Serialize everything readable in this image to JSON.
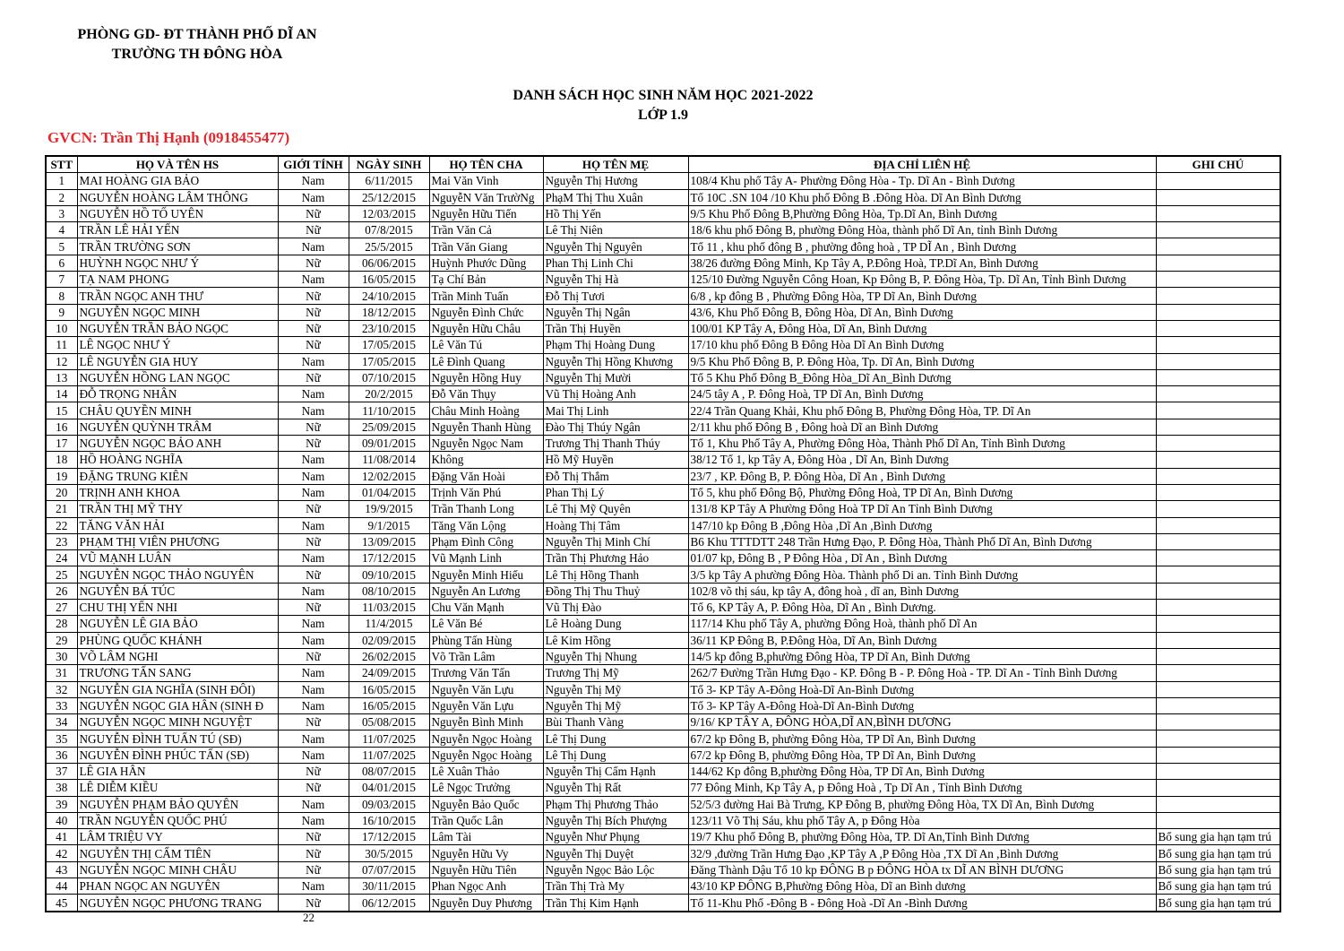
{
  "header": {
    "school_line1": "PHÒNG GD- ĐT THÀNH PHỐ DĨ AN",
    "school_line2": "TRƯỜNG TH ĐÔNG HÒA",
    "title": "DANH SÁCH HỌC SINH NĂM HỌC 2021-2022",
    "class": "LỚP 1.9",
    "teacher": "GVCN: Trần Thị Hạnh (0918455477)",
    "teacher_color": "#e8262a"
  },
  "table": {
    "columns": [
      "STT",
      "HỌ VÀ TÊN HS",
      "GIỚI TÍNH",
      "NGÀY SINH",
      "HỌ TÊN CHA",
      "HỌ TÊN MẸ",
      "ĐỊA CHỈ LIÊN HỆ",
      "GHI CHÚ"
    ],
    "rows": [
      [
        "1",
        "MAI HOÀNG GIA BẢO",
        "Nam",
        "6/11/2015",
        "Mai Văn Vinh",
        "Nguyễn Thị Hương",
        "108/4 Khu phố Tây A- Phường Đông Hòa - Tp. Dĩ An - Bình Dương",
        ""
      ],
      [
        "2",
        "NGUYỄN HOÀNG LÂM THÔNG",
        "Nam",
        "25/12/2015",
        "NguyễN Văn TrườNg",
        "PhạM Thị Thu Xuân",
        "Tổ 10C .SN 104 /10 Khu phố Đông B .Đông Hòa. Dĩ An Bình Dương",
        ""
      ],
      [
        "3",
        "NGUYỄN HỒ TỐ UYÊN",
        "Nữ",
        "12/03/2015",
        "Nguyễn Hữu Tiến",
        "Hồ Thị Yến",
        "9/5 Khu Phố Đông B,Phường Đông Hòa, Tp.Dĩ An, Bình Dương",
        ""
      ],
      [
        "4",
        "TRẦN LÊ HẢI YẾN",
        "Nữ",
        "07/8/2015",
        "Trần Văn Cả",
        "Lê Thị Niên",
        "18/6 khu phố Đông B, phường Đông Hòa, thành phố Dĩ An, tỉnh Bình Dương",
        ""
      ],
      [
        "5",
        "TRẦN TRƯỜNG SƠN",
        "Nam",
        "25/5/2015",
        "Trần Văn Giang",
        "Nguyễn Thị Nguyên",
        "Tổ 11 , khu phố đông B , phường đông hoà ,  TP DĨ An , Bình Dương",
        ""
      ],
      [
        "6",
        "HUỲNH NGỌC NHƯ Ý",
        "Nữ",
        "06/06/2015",
        "Huỳnh Phước Dũng",
        "Phan Thị Linh Chi",
        "38/26 đường Đông Minh, Kp Tây A, P.Đông Hoà, TP.Dĩ An, Bình Dương",
        ""
      ],
      [
        "7",
        "TẠ NAM PHONG",
        "Nam",
        "16/05/2015",
        "Tạ Chí Bản",
        "Nguyễn Thị Hà",
        "125/10 Đường Nguyễn Công Hoan, Kp Đông B, P. Đông Hòa, Tp. Dĩ An, Tỉnh Bình Dương",
        ""
      ],
      [
        "8",
        "TRẦN NGỌC ANH THƯ",
        "Nữ",
        "24/10/2015",
        "Trần Minh Tuấn",
        "Đỗ Thị Tươi",
        "6/8 , kp đông B , Phường Đông Hòa, TP Dĩ An, Bình Dương",
        ""
      ],
      [
        "9",
        "NGUYỄN NGỌC MINH",
        "Nữ",
        "18/12/2015",
        "Nguyễn Đình Chức",
        "Nguyễn Thị Ngân",
        "43/6, Khu Phố Đông B, Đông Hòa, Dĩ An, Bình Dương",
        ""
      ],
      [
        "10",
        "NGUYỄN TRẦN BẢO NGỌC",
        "Nữ",
        "23/10/2015",
        "Nguyễn Hữu Châu",
        "Trần Thị Huyền",
        "100/01 KP Tây A, Đông Hòa, Dĩ An, Bình Dương",
        ""
      ],
      [
        "11",
        "LÊ NGỌC NHƯ Ý",
        "Nữ",
        "17/05/2015",
        "Lê Văn Tú",
        "Phạm Thị Hoàng Dung",
        "17/10 khu phố Đông B Đông Hòa Dĩ An Bình Dương",
        ""
      ],
      [
        "12",
        "LÊ NGUYỄN GIA HUY",
        "Nam",
        "17/05/2015",
        "Lê Đình Quang",
        "Nguyễn Thị Hồng Khương",
        "9/5 Khu Phố Đông B, P. Đông Hòa, Tp. Dĩ An, Bình Dương",
        ""
      ],
      [
        "13",
        "NGUYỄN HỒNG LAN NGỌC",
        "Nữ",
        "07/10/2015",
        "Nguyễn Hồng Huy",
        "Nguyễn Thị Mười",
        "Tổ 5 Khu Phố Đông B_Đông Hòa_Dĩ An_Bình Dương",
        ""
      ],
      [
        "14",
        "ĐỖ TRỌNG NHÂN",
        "Nam",
        "20/2/2015",
        " Đỗ Văn Thụy",
        "Vũ Thị Hoàng Anh",
        "24/5 tây A , P. Đông Hoà, TP Dĩ An, Bình Dương",
        ""
      ],
      [
        "15",
        "CHÂU QUYỀN MINH",
        "Nam",
        "11/10/2015",
        "Châu Minh Hoàng",
        "Mai Thị Linh",
        "22/4 Trần Quang Khải, Khu phố Đông B, Phường Đông Hòa, TP. Dĩ An",
        ""
      ],
      [
        "16",
        "NGUYỄN QUỲNH TRÂM",
        "Nữ",
        "25/09/2015",
        "Nguyễn Thanh Hùng",
        "Đào Thị Thúy Ngân",
        "2/11 khu phố Đông B , Đông hoà Dĩ an Bình Dương",
        ""
      ],
      [
        "17",
        "NGUYỄN NGỌC BẢO ANH",
        "Nữ",
        "09/01/2015",
        "Nguyễn Ngọc Nam",
        "Trương Thị Thanh Thúy",
        "Tổ 1, Khu Phố Tây A, Phường Đông Hòa, Thành Phố Dĩ An, Tỉnh Bình Dương",
        ""
      ],
      [
        "18",
        "HỒ HOÀNG NGHĨA",
        "Nam",
        "11/08/2014",
        "Không",
        "Hồ Mỹ Huyền",
        "38/12 Tổ 1, kp Tây A, Đông Hòa , Dĩ An, Bình Dương",
        ""
      ],
      [
        "19",
        "ĐẶNG TRUNG KIÊN",
        "Nam",
        "12/02/2015",
        "Đặng Văn Hoài",
        "Đỗ Thị Thắm",
        "23/7 , KP. Đông B, P. Đông Hòa, Dĩ An , Bình Dương",
        ""
      ],
      [
        "20",
        "TRỊNH ANH KHOA",
        "Nam",
        "01/04/2015",
        "Trịnh Văn Phú",
        "Phan Thị Lý",
        "Tổ 5, khu phố Đông Bộ, Phường Đông Hoà, TP Dĩ An, Bình Dương",
        ""
      ],
      [
        "21",
        "TRẦN THỊ MỸ THY",
        "Nữ",
        "19/9/2015",
        "Trần Thanh Long",
        "Lê Thị Mỹ Quyên",
        "131/8 KP Tây A Phường Đông Hoà TP Dĩ An Tỉnh Bình Dương",
        ""
      ],
      [
        "22",
        "TĂNG VĂN HẢI",
        "Nam",
        "9/1/2015",
        "Tăng Văn Lộng",
        "Hoàng Thị Tâm",
        "147/10 kp Đông B ,Đông Hòa ,Dĩ An ,Bình Dương",
        ""
      ],
      [
        "23",
        "PHẠM THỊ VIÊN PHƯƠNG",
        "Nữ",
        "13/09/2015",
        "Phạm Đình Công",
        "Nguyễn Thị Minh Chí",
        "B6 Khu TTTDTT 248 Trần Hưng Đạo, P. Đông Hòa, Thành Phố Dĩ An, Bình Dương",
        ""
      ],
      [
        "24",
        "VŨ MẠNH LUÂN",
        "Nam",
        "17/12/2015",
        "Vũ Mạnh Linh",
        "Trần Thị Phương Hảo",
        "01/07 kp, Đông B , P Đông Hòa , Dĩ An , Bình Dương",
        ""
      ],
      [
        "25",
        "NGUYỄN NGỌC THẢO NGUYÊN",
        "Nữ",
        "09/10/2015",
        "Nguyễn Minh Hiếu",
        "Lê Thị Hồng Thanh",
        "3/5 kp Tây A phường Đông Hòa. Thành phố Di an. Tỉnh Bình Dương",
        ""
      ],
      [
        "26",
        "NGUYỄN  BÁ TÚC",
        "Nam",
        "08/10/2015",
        "Nguyễn  An Lương",
        "Đồng  Thị  Thu  Thuỷ",
        "102/8 võ  thị  sáu,  kp  tây  A,  đông  hoà  , dĩ  an,  Bình Dương",
        ""
      ],
      [
        "27",
        "CHU THỊ YẾN NHI",
        "Nữ",
        "11/03/2015",
        "Chu Văn Mạnh",
        "Vũ Thị Đào",
        "Tổ 6, KP Tây A, P. Đông Hòa, Dĩ An , Bình Dương.",
        ""
      ],
      [
        "28",
        "NGUYỄN LÊ GIA BẢO",
        "Nam",
        "11/4/2015",
        "Lê Văn Bé",
        "Lê Hoàng Dung",
        "117/14 Khu phố Tây A, phường Đông Hoà, thành phố Dĩ An",
        ""
      ],
      [
        "29",
        "PHÙNG QUỐC KHÁNH",
        "Nam",
        "02/09/2015",
        "Phùng Tấn Hùng",
        "Lê Kim Hồng",
        "36/11 KP Đông B, P.Đông Hòa, Dĩ An, Bình Dương",
        ""
      ],
      [
        "30",
        "VÕ LÂM NGHI",
        "Nữ",
        "26/02/2015",
        "Võ Trần Lâm",
        "Nguyễn Thị Nhung",
        "14/5 kp đông B,phường Đông Hòa, TP Dĩ An, Bình Dương",
        ""
      ],
      [
        "31",
        "TRƯƠNG TẤN SANG",
        "Nam",
        "24/09/2015",
        "Trương Văn Tấn",
        "Trương Thị Mỹ",
        "262/7 Đường Trần Hưng Đạo - KP. Đông B - P. Đông Hoà - TP. Dĩ An - Tỉnh Bình Dương",
        ""
      ],
      [
        "32",
        "NGUYỄN GIA NGHĨA (SINH ĐÔI)",
        "Nam",
        "16/05/2015",
        "Nguyễn Văn Lựu",
        "Nguyễn Thị Mỹ",
        "Tổ 3- KP Tây A-Đông Hoà-Dĩ An-Bình Dương",
        ""
      ],
      [
        "33",
        " NGUYỄN NGỌC GIA HÂN (SINH Đ",
        "Nam",
        "16/05/2015",
        "Nguyễn Văn Lựu",
        "Nguyễn Thị Mỹ",
        "Tổ 3- KP Tây A-Đông Hoà-Dĩ An-Bình Dương",
        ""
      ],
      [
        "34",
        "NGUYỄN NGỌC MINH NGUYỆT",
        "Nữ",
        "05/08/2015",
        "Nguyễn  Bình Minh",
        "Bùi Thanh Vàng",
        "9/16/ KP TÂY A, ĐÔNG HÒA,DĨ AN,BÌNH DƯƠNG",
        ""
      ],
      [
        "35",
        "NGUYỄN ĐÌNH TUẤN TÚ (SĐ)",
        "Nam",
        "11/07/2025",
        "Nguyễn Ngọc Hoàng",
        "Lê Thị Dung",
        "67/2 kp Đông B, phường Đông Hòa, TP Dĩ An, Bình Dương",
        ""
      ],
      [
        "36",
        " NGUYỄN ĐÌNH PHÚC TẤN (SĐ)",
        "Nam",
        "11/07/2025",
        "Nguyễn Ngọc Hoàng",
        "Lê Thị Dung",
        "67/2 kp Đông B, phường Đông Hòa, TP Dĩ An, Bình Dương",
        ""
      ],
      [
        "37",
        "LÊ GIA HÂN",
        "Nữ",
        "08/07/2015",
        "Lê Xuân Thảo",
        "Nguyễn Thị Cẩm Hạnh",
        "144/62 Kp đông B,phường Đông Hòa, TP Dĩ An, Bình Dương",
        ""
      ],
      [
        "38",
        "LÊ DIỄM KIỀU",
        "Nữ",
        "04/01/2015",
        "Lê Ngọc Trưởng",
        "Nguyễn Thị Rất",
        "77 Đông Minh, Kp Tây A, p Đông Hoà , Tp Dĩ An , Tỉnh Bình Dương",
        ""
      ],
      [
        "39",
        "NGUYỄN PHẠM BẢO QUYÊN",
        "Nam",
        "09/03/2015",
        "Nguyễn Bảo Quốc",
        "Phạm Thị Phương Thảo",
        "52/5/3 đường Hai Bà Trưng,  KP Đông B, phường Đông Hòa, TX Dĩ An, Bình Dương",
        ""
      ],
      [
        "40",
        "TRẦN NGUYỄN QUỐC PHÚ",
        "Nam",
        "16/10/2015",
        "Trần Quốc Lân",
        "Nguyễn Thị Bích Phượng",
        "123/11 Võ Thị Sáu, khu phố Tây A, p Đông Hòa",
        ""
      ],
      [
        "41",
        "LÂM TRIỆU VY",
        "Nữ",
        "17/12/2015",
        "Lâm Tài",
        "Nguyễn Như Phụng",
        "19/7 Khu phố Đông B, phường Đông Hòa, TP. Dĩ An,Tỉnh Bình Dương",
        "Bổ sung gia hạn tạm trú"
      ],
      [
        "42",
        "NGUYỄN THỊ CẨM TIÊN",
        "Nữ",
        "30/5/2015",
        "Nguyễn Hữu Vy",
        "Nguyễn Thị Duyệt",
        "32/9 ,đường Trần Hưng Đạo ,KP Tây A ,P Đông Hòa ,TX Dĩ An ,Bình Dương",
        "Bổ sung gia hạn tạm trú"
      ],
      [
        "43",
        "NGUYỄN NGỌC MINH CHÂU",
        "Nữ",
        "07/07/2015",
        "Nguyễn Hữu Tiên",
        "Nguyễn Ngọc Bảo Lộc",
        "Đăng Thành Dậu Tổ 10 kp ĐÔNG B p ĐÔNG HÒA tx DĨ AN BÌNH DƯƠNG",
        "Bổ sung gia hạn tạm trú"
      ],
      [
        "44",
        "PHAN NGỌC AN NGUYÊN",
        "Nam",
        "30/11/2015",
        "Phan Ngọc Anh",
        "Trần Thị Trà My",
        "43/10 KP ĐÔNG B,Phường Đông Hòa, Dĩ an Bình dương",
        "Bổ sung gia hạn tạm trú"
      ],
      [
        "45",
        "NGUYỄN NGỌC PHƯƠNG TRANG",
        "Nữ",
        "06/12/2015",
        "Nguyễn Duy Phương",
        "Trần Thị Kim Hạnh",
        "Tổ 11-Khu Phố -Đông B - Đông Hoà -Dĩ An -Bình Dương",
        "Bổ sung gia hạn tạm trú"
      ]
    ]
  },
  "footer": {
    "page_number": "22"
  }
}
